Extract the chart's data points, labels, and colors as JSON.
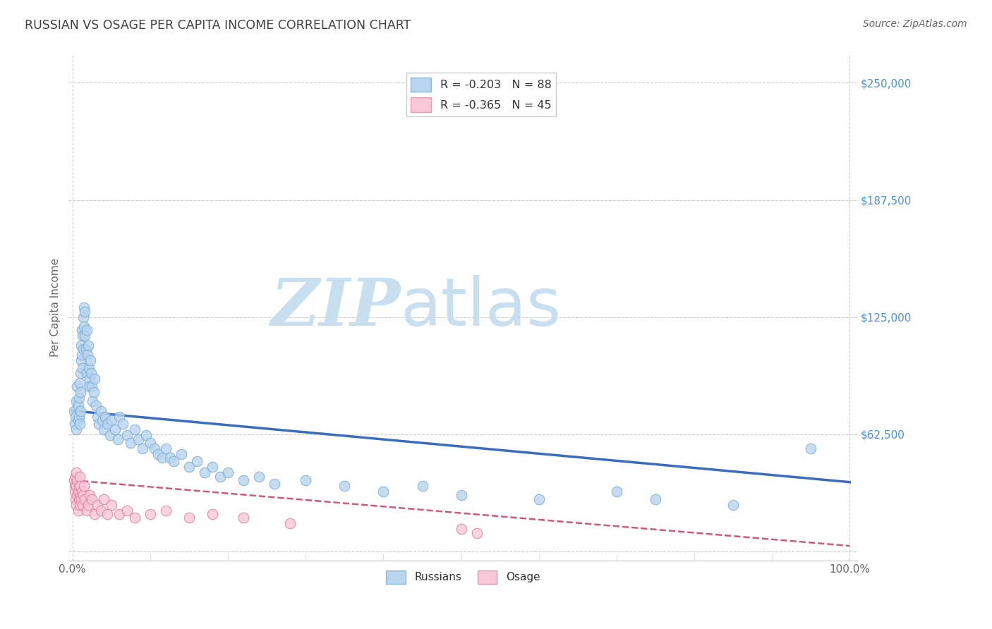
{
  "title": "RUSSIAN VS OSAGE PER CAPITA INCOME CORRELATION CHART",
  "source": "Source: ZipAtlas.com",
  "ylabel": "Per Capita Income",
  "watermark_zip": "ZIP",
  "watermark_atlas": "atlas",
  "yticks": [
    0,
    62500,
    125000,
    187500,
    250000
  ],
  "ytick_labels": [
    "",
    "$62,500",
    "$125,000",
    "$187,500",
    "$250,000"
  ],
  "ylim": [
    -5000,
    265000
  ],
  "xlim": [
    -0.005,
    1.01
  ],
  "legend_entries": [
    {
      "label": "R = -0.203   N = 88",
      "facecolor": "#b8d4ee",
      "edgecolor": "#90b8d8"
    },
    {
      "label": "R = -0.365   N = 45",
      "facecolor": "#f8c8d8",
      "edgecolor": "#e898b0"
    }
  ],
  "legend_bottom": [
    {
      "label": "Russians",
      "facecolor": "#b8d4ee",
      "edgecolor": "#90b8d8"
    },
    {
      "label": "Osage",
      "facecolor": "#f8c8d8",
      "edgecolor": "#e898b0"
    }
  ],
  "blue_line": [
    0.0,
    75000,
    1.0,
    37000
  ],
  "pink_line": [
    0.0,
    38000,
    1.0,
    3000
  ],
  "blue_line_color": "#3a6cbf",
  "pink_line_color": "#d05878",
  "dot_blue_face": "#b8d4ee",
  "dot_blue_edge": "#7aaad0",
  "dot_pink_face": "#f8c8d8",
  "dot_pink_edge": "#e07898",
  "background_color": "#ffffff",
  "grid_color": "#c8c8c8",
  "title_color": "#404040",
  "ytick_color": "#4a90d8",
  "source_color": "#666666",
  "ylabel_color": "#666666",
  "xtick_color": "#666666",
  "watermark_color_zip": "#c8dff0",
  "watermark_color_atlas": "#c8dff0",
  "russian_x": [
    0.002,
    0.003,
    0.004,
    0.005,
    0.005,
    0.006,
    0.007,
    0.007,
    0.008,
    0.008,
    0.009,
    0.009,
    0.01,
    0.01,
    0.01,
    0.011,
    0.011,
    0.012,
    0.012,
    0.013,
    0.013,
    0.014,
    0.014,
    0.015,
    0.015,
    0.016,
    0.016,
    0.017,
    0.018,
    0.018,
    0.019,
    0.02,
    0.021,
    0.022,
    0.022,
    0.023,
    0.024,
    0.025,
    0.026,
    0.027,
    0.028,
    0.03,
    0.032,
    0.034,
    0.036,
    0.038,
    0.04,
    0.042,
    0.045,
    0.048,
    0.05,
    0.055,
    0.058,
    0.06,
    0.065,
    0.07,
    0.075,
    0.08,
    0.085,
    0.09,
    0.095,
    0.1,
    0.105,
    0.11,
    0.115,
    0.12,
    0.125,
    0.13,
    0.14,
    0.15,
    0.16,
    0.17,
    0.18,
    0.19,
    0.2,
    0.22,
    0.24,
    0.26,
    0.3,
    0.35,
    0.4,
    0.45,
    0.5,
    0.6,
    0.7,
    0.75,
    0.85,
    0.95
  ],
  "russian_y": [
    75000,
    68000,
    72000,
    80000,
    65000,
    88000,
    70000,
    78000,
    82000,
    72000,
    90000,
    68000,
    95000,
    85000,
    75000,
    110000,
    102000,
    118000,
    105000,
    115000,
    98000,
    125000,
    108000,
    130000,
    120000,
    115000,
    128000,
    108000,
    118000,
    95000,
    105000,
    110000,
    98000,
    92000,
    88000,
    102000,
    95000,
    88000,
    80000,
    85000,
    92000,
    78000,
    72000,
    68000,
    75000,
    70000,
    65000,
    72000,
    68000,
    62000,
    70000,
    65000,
    60000,
    72000,
    68000,
    62000,
    58000,
    65000,
    60000,
    55000,
    62000,
    58000,
    55000,
    52000,
    50000,
    55000,
    50000,
    48000,
    52000,
    45000,
    48000,
    42000,
    45000,
    40000,
    42000,
    38000,
    40000,
    36000,
    38000,
    35000,
    32000,
    35000,
    30000,
    28000,
    32000,
    28000,
    25000,
    55000
  ],
  "osage_x": [
    0.002,
    0.003,
    0.003,
    0.004,
    0.004,
    0.005,
    0.005,
    0.005,
    0.006,
    0.006,
    0.007,
    0.007,
    0.008,
    0.008,
    0.009,
    0.009,
    0.01,
    0.01,
    0.011,
    0.012,
    0.013,
    0.014,
    0.015,
    0.016,
    0.018,
    0.02,
    0.022,
    0.025,
    0.028,
    0.032,
    0.036,
    0.04,
    0.045,
    0.05,
    0.06,
    0.07,
    0.08,
    0.1,
    0.12,
    0.15,
    0.18,
    0.22,
    0.28,
    0.5,
    0.52
  ],
  "osage_y": [
    38000,
    35000,
    32000,
    40000,
    28000,
    42000,
    35000,
    25000,
    38000,
    30000,
    32000,
    22000,
    35000,
    28000,
    40000,
    25000,
    35000,
    30000,
    28000,
    32000,
    25000,
    30000,
    35000,
    28000,
    22000,
    25000,
    30000,
    28000,
    20000,
    25000,
    22000,
    28000,
    20000,
    25000,
    20000,
    22000,
    18000,
    20000,
    22000,
    18000,
    20000,
    18000,
    15000,
    12000,
    10000
  ]
}
